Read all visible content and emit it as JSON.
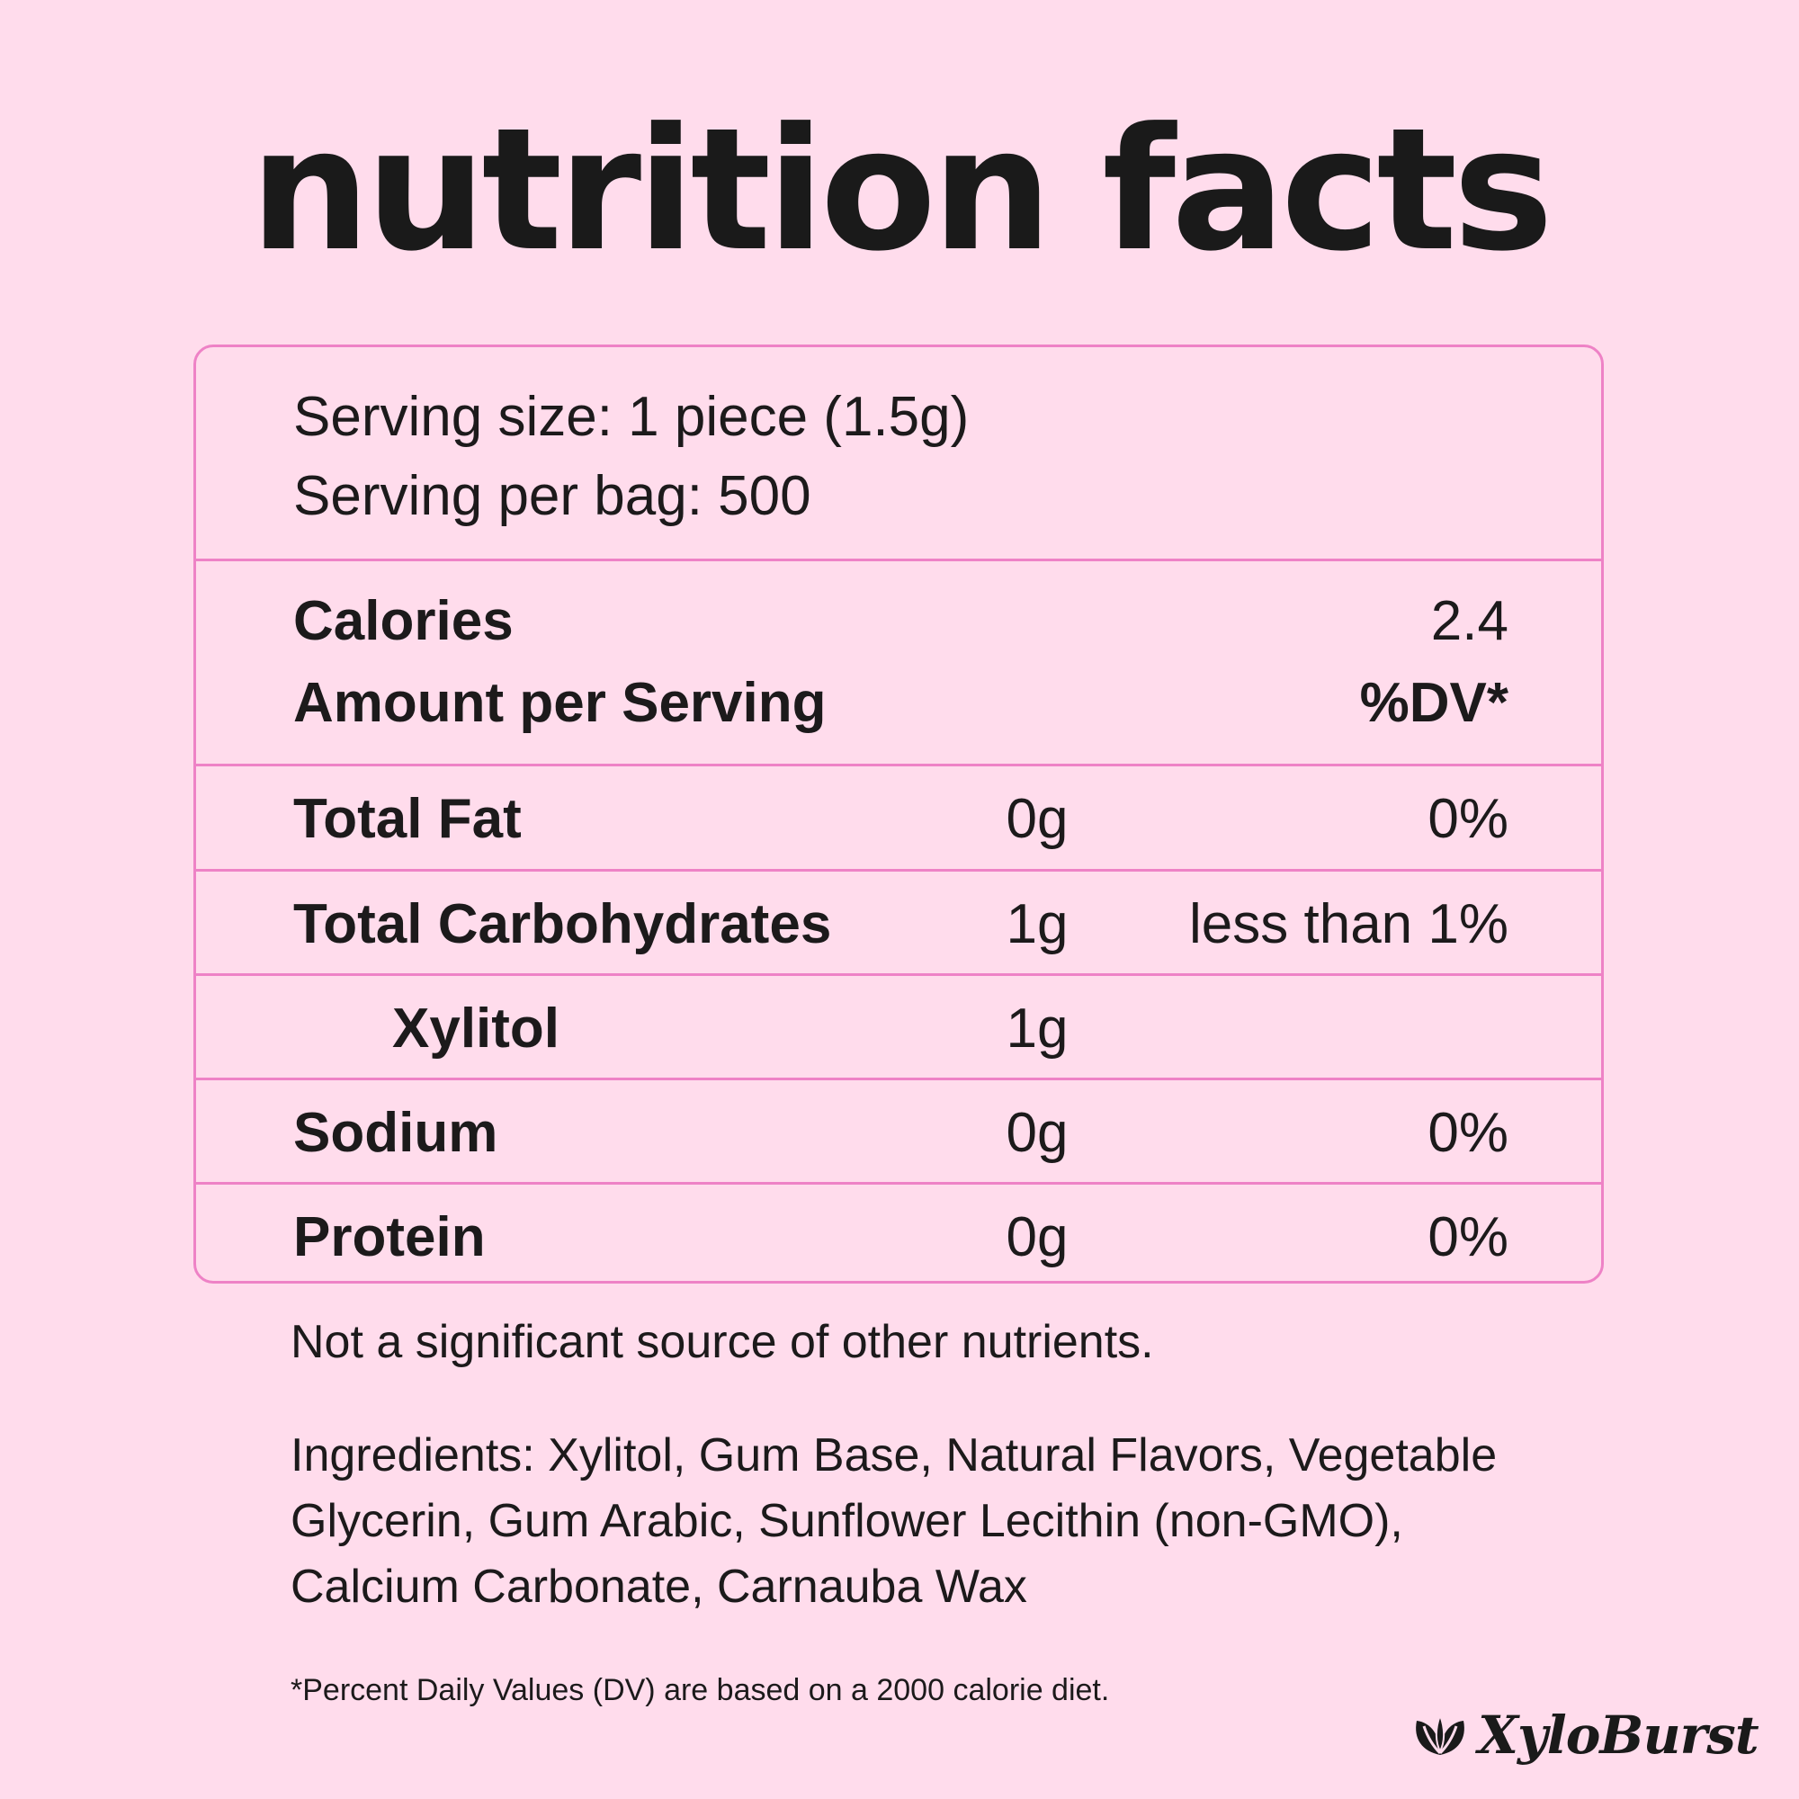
{
  "title": "nutrition facts",
  "serving": {
    "size": "Serving size: 1 piece (1.5g)",
    "per_bag": "Serving per bag: 500"
  },
  "calories": {
    "label": "Calories",
    "value": "2.4"
  },
  "amount_header": {
    "label": "Amount per Serving",
    "dv": "%DV*"
  },
  "nutrients": [
    {
      "label": "Total Fat",
      "amount": "0g",
      "dv": "0%"
    },
    {
      "label": "Total Carbohydrates",
      "amount": "1g",
      "dv": "less than 1%"
    },
    {
      "label": "Xylitol",
      "amount": "1g",
      "dv": ""
    },
    {
      "label": "Sodium",
      "amount": "0g",
      "dv": "0%"
    },
    {
      "label": "Protein",
      "amount": "0g",
      "dv": "0%"
    }
  ],
  "not_significant": "Not a significant source of other nutrients.",
  "ingredients": {
    "line1": "Ingredients: Xylitol, Gum Base, Natural Flavors, Vegetable",
    "line2": "Glycerin, Gum Arabic, Sunflower Lecithin (non-GMO),",
    "line3": "Calcium Carbonate, Carnauba Wax"
  },
  "footnote": "*Percent Daily Values (DV) are based on a 2000 calorie diet.",
  "brand": "XyloBurst",
  "colors": {
    "background": "#ffdcec",
    "border": "#ee82c6",
    "text": "#1c1a1b"
  },
  "icons": {
    "logo": "leaf-icon"
  }
}
